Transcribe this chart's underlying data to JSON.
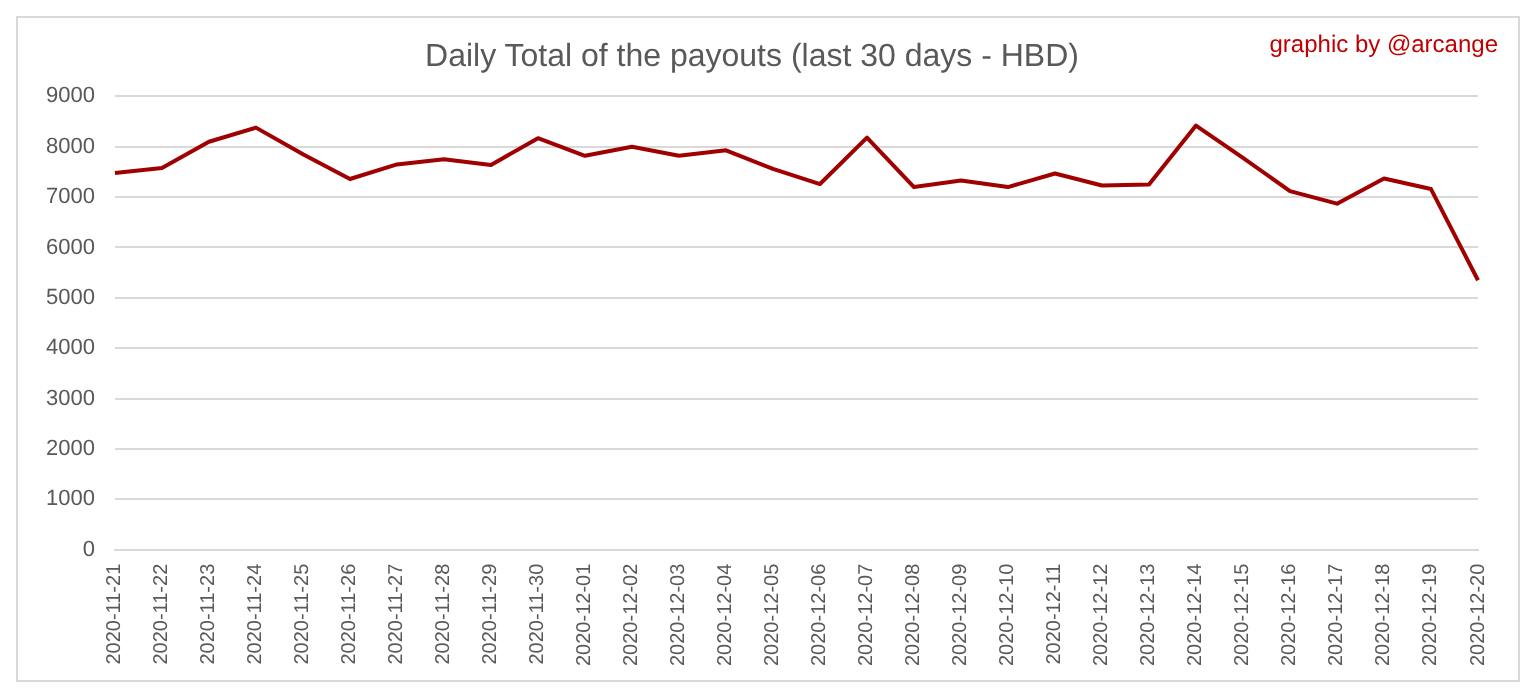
{
  "chart_data": {
    "type": "line",
    "title": "Daily Total of the payouts (last 30 days - HBD)",
    "annotations": [
      "graphic by @arcange"
    ],
    "categories": [
      "2020-11-21",
      "2020-11-22",
      "2020-11-23",
      "2020-11-24",
      "2020-11-25",
      "2020-11-26",
      "2020-11-27",
      "2020-11-28",
      "2020-11-29",
      "2020-11-30",
      "2020-12-01",
      "2020-12-02",
      "2020-12-03",
      "2020-12-04",
      "2020-12-05",
      "2020-12-06",
      "2020-12-07",
      "2020-12-08",
      "2020-12-09",
      "2020-12-10",
      "2020-12-11",
      "2020-12-12",
      "2020-12-13",
      "2020-12-14",
      "2020-12-15",
      "2020-12-16",
      "2020-12-17",
      "2020-12-18",
      "2020-12-19",
      "2020-12-20"
    ],
    "series": [
      {
        "color": "#a00000",
        "values": [
          7480,
          7580,
          8100,
          8380,
          7850,
          7360,
          7650,
          7750,
          7640,
          8170,
          7820,
          8000,
          7820,
          7930,
          7560,
          7260,
          8180,
          7200,
          7330,
          7200,
          7470,
          7230,
          7250,
          8420,
          7780,
          7120,
          6870,
          7370,
          7160,
          5350
        ]
      }
    ],
    "ylim": [
      0,
      9000
    ],
    "yticks": [
      0,
      1000,
      2000,
      3000,
      4000,
      5000,
      6000,
      7000,
      8000,
      9000
    ],
    "grid": "y",
    "legend": false,
    "marker": "none",
    "line_style": "solid"
  }
}
